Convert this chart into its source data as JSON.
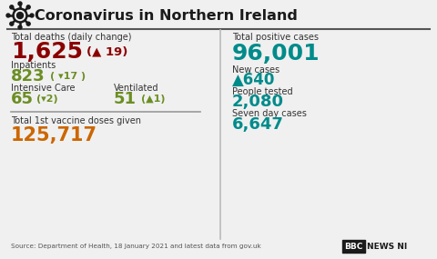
{
  "title": "Coronavirus in Northern Ireland",
  "bg_color": "#f0f0f0",
  "left_panel": {
    "total_deaths_label": "Total deaths (daily change)",
    "total_deaths_value": "1,625",
    "total_deaths_change": "(▲ 19)",
    "total_deaths_value_color": "#8b0000",
    "total_deaths_change_color": "#8b0000",
    "inpatients_label": "Inpatients",
    "inpatients_value": "823",
    "inpatients_change": "( ▾17 )",
    "inpatients_color": "#6b8e23",
    "intensive_care_label": "Intensive Care",
    "intensive_care_value": "65",
    "intensive_care_change": "(▾2)",
    "intensive_care_color": "#6b8e23",
    "ventilated_label": "Ventilated",
    "ventilated_value": "51",
    "ventilated_change": "(▲1)",
    "ventilated_color": "#6b8e23",
    "vaccine_label": "Total 1st vaccine doses given",
    "vaccine_value": "125,717",
    "vaccine_color": "#cc6600"
  },
  "right_panel": {
    "total_positive_label": "Total positive cases",
    "total_positive_value": "96,001",
    "total_positive_color": "#008b8b",
    "new_cases_label": "New cases",
    "new_cases_value": "▲640",
    "new_cases_color": "#008b8b",
    "people_tested_label": "People tested",
    "people_tested_value": "2,080",
    "people_tested_color": "#008b8b",
    "seven_day_label": "Seven day cases",
    "seven_day_value": "6,647",
    "seven_day_color": "#008b8b"
  },
  "source_text": "Source: Department of Health, 18 January 2021 and latest data from gov.uk",
  "title_color": "#1a1a1a",
  "label_color": "#333333",
  "divider_color": "#bbbbbb",
  "header_line_color": "#555555",
  "virus_color": "#1a1a1a"
}
